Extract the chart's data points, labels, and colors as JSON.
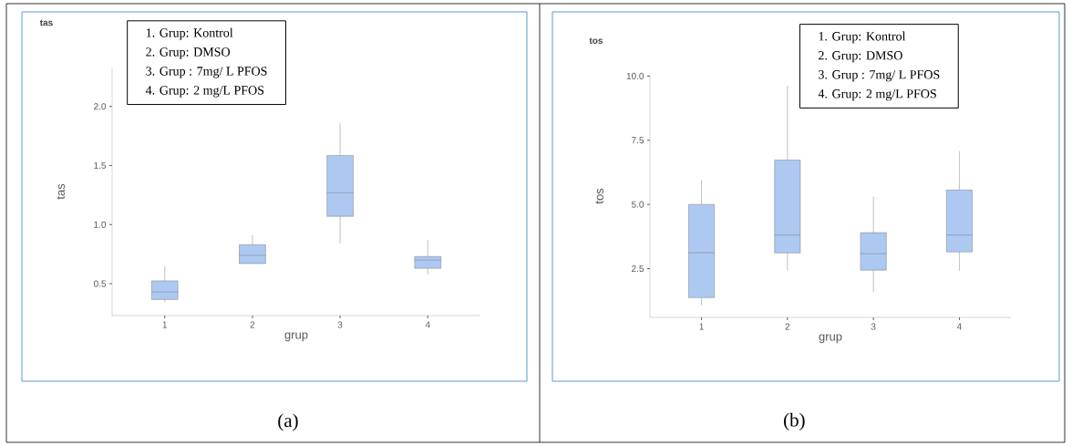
{
  "chart_data": [
    {
      "type": "box",
      "title": "tas",
      "xlabel": "grup",
      "ylabel": "tas",
      "categories": [
        "1",
        "2",
        "3",
        "4"
      ],
      "color": "#aec9f1",
      "boxes": [
        {
          "low": 0.345,
          "q1": 0.366,
          "median": 0.43,
          "q3": 0.524,
          "high": 0.646
        },
        {
          "low": 0.67,
          "q1": 0.67,
          "median": 0.74,
          "q3": 0.83,
          "high": 0.91
        },
        {
          "low": 0.84,
          "q1": 1.07,
          "median": 1.27,
          "q3": 1.585,
          "high": 1.86
        },
        {
          "low": 0.58,
          "q1": 0.63,
          "median": 0.7,
          "q3": 0.73,
          "high": 0.87
        }
      ],
      "ylim": [
        0.23,
        2.33
      ],
      "yticks": [
        {
          "value": 0.5,
          "label": "0.5"
        },
        {
          "value": 1.0,
          "label": "1.0"
        },
        {
          "value": 1.5,
          "label": "1.5"
        },
        {
          "value": 2.0,
          "label": "2.0"
        }
      ],
      "annotations": [
        "1. Grup: Kontrol",
        "2. Grup: DMSO",
        "3. Grup : 7mg/ L  PFOS",
        "4. Grup: 2 mg/L PFOS",
        "(a)"
      ]
    },
    {
      "type": "box",
      "title": "tos",
      "xlabel": "grup",
      "ylabel": "tos",
      "categories": [
        "1",
        "2",
        "3",
        "4"
      ],
      "color": "#aec9f1",
      "boxes": [
        {
          "low": 1.07,
          "q1": 1.37,
          "median": 3.12,
          "q3": 5.0,
          "high": 5.93
        },
        {
          "low": 2.42,
          "q1": 3.11,
          "median": 3.81,
          "q3": 6.73,
          "high": 9.62
        },
        {
          "low": 1.58,
          "q1": 2.44,
          "median": 3.08,
          "q3": 3.9,
          "high": 5.3
        },
        {
          "low": 2.42,
          "q1": 3.15,
          "median": 3.81,
          "q3": 5.56,
          "high": 7.08
        }
      ],
      "ylim": [
        0.6,
        10.05
      ],
      "yticks": [
        {
          "value": 2.5,
          "label": "2.5"
        },
        {
          "value": 5.0,
          "label": "5.0"
        },
        {
          "value": 7.5,
          "label": "7.5"
        },
        {
          "value": 10.0,
          "label": "10.0"
        }
      ],
      "annotations": [
        "1. Grup: Kontrol",
        "2. Grup: DMSO",
        "3. Grup : 7mg/ L  PFOS",
        "4. Grup: 2 mg/L PFOS",
        "(b)"
      ]
    }
  ]
}
